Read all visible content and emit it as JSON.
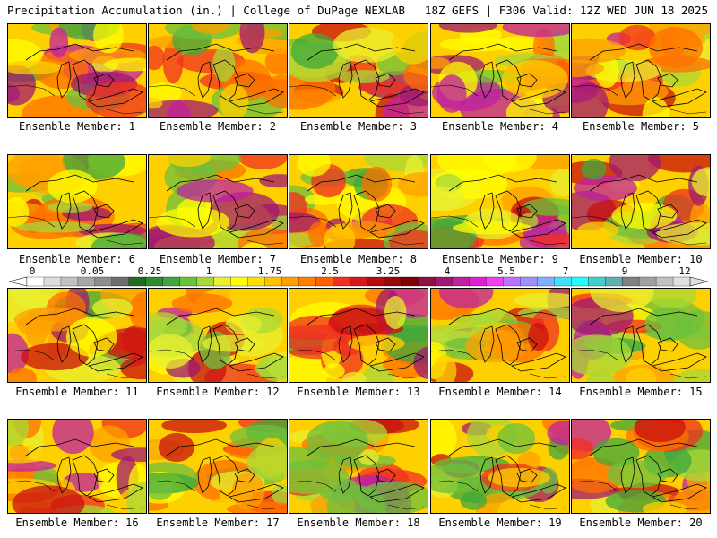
{
  "header": {
    "left": "Precipitation Accumulation (in.) | College of DuPage NEXLAB",
    "right": "18Z GEFS | F306 Valid: 12Z WED JUN 18 2025"
  },
  "caption_prefix": "Ensemble Member: ",
  "members": [
    {
      "id": 1,
      "caption": "Ensemble Member: 1"
    },
    {
      "id": 2,
      "caption": "Ensemble Member: 2"
    },
    {
      "id": 3,
      "caption": "Ensemble Member: 3"
    },
    {
      "id": 4,
      "caption": "Ensemble Member: 4"
    },
    {
      "id": 5,
      "caption": "Ensemble Member: 5"
    },
    {
      "id": 6,
      "caption": "Ensemble Member: 6"
    },
    {
      "id": 7,
      "caption": "Ensemble Member: 7"
    },
    {
      "id": 8,
      "caption": "Ensemble Member: 8"
    },
    {
      "id": 9,
      "caption": "Ensemble Member: 9"
    },
    {
      "id": 10,
      "caption": "Ensemble Member: 10"
    },
    {
      "id": 11,
      "caption": "Ensemble Member: 11"
    },
    {
      "id": 12,
      "caption": "Ensemble Member: 12"
    },
    {
      "id": 13,
      "caption": "Ensemble Member: 13"
    },
    {
      "id": 14,
      "caption": "Ensemble Member: 14"
    },
    {
      "id": 15,
      "caption": "Ensemble Member: 15"
    },
    {
      "id": 16,
      "caption": "Ensemble Member: 16"
    },
    {
      "id": 17,
      "caption": "Ensemble Member: 17"
    },
    {
      "id": 18,
      "caption": "Ensemble Member: 18"
    },
    {
      "id": 19,
      "caption": "Ensemble Member: 19"
    },
    {
      "id": 20,
      "caption": "Ensemble Member: 20"
    }
  ],
  "colorbar": {
    "labels": [
      "0",
      "0.05",
      "0.25",
      "1",
      "1.75",
      "2.5",
      "3.25",
      "4",
      "5.5",
      "7",
      "9",
      "12"
    ],
    "colors": [
      "#ffffff",
      "#dcdcdc",
      "#c2c2c2",
      "#a8a8a8",
      "#8e8e8e",
      "#6e6e6e",
      "#1e6e1e",
      "#2e8b2e",
      "#3ea83e",
      "#6cc03c",
      "#a8d838",
      "#e8f030",
      "#ffff00",
      "#ffe000",
      "#ffc000",
      "#ffa000",
      "#ff8000",
      "#ff6000",
      "#f03020",
      "#d81818",
      "#b80c0c",
      "#980808",
      "#800000",
      "#901040",
      "#a01870",
      "#c020a0",
      "#e020d0",
      "#f040f0",
      "#c070ff",
      "#a090ff",
      "#80b0ff",
      "#40e0ff",
      "#20ffff",
      "#40d0d0",
      "#60b0b0",
      "#808080",
      "#a0a0a0",
      "#c0c0c0",
      "#e0e0e0"
    ]
  }
}
